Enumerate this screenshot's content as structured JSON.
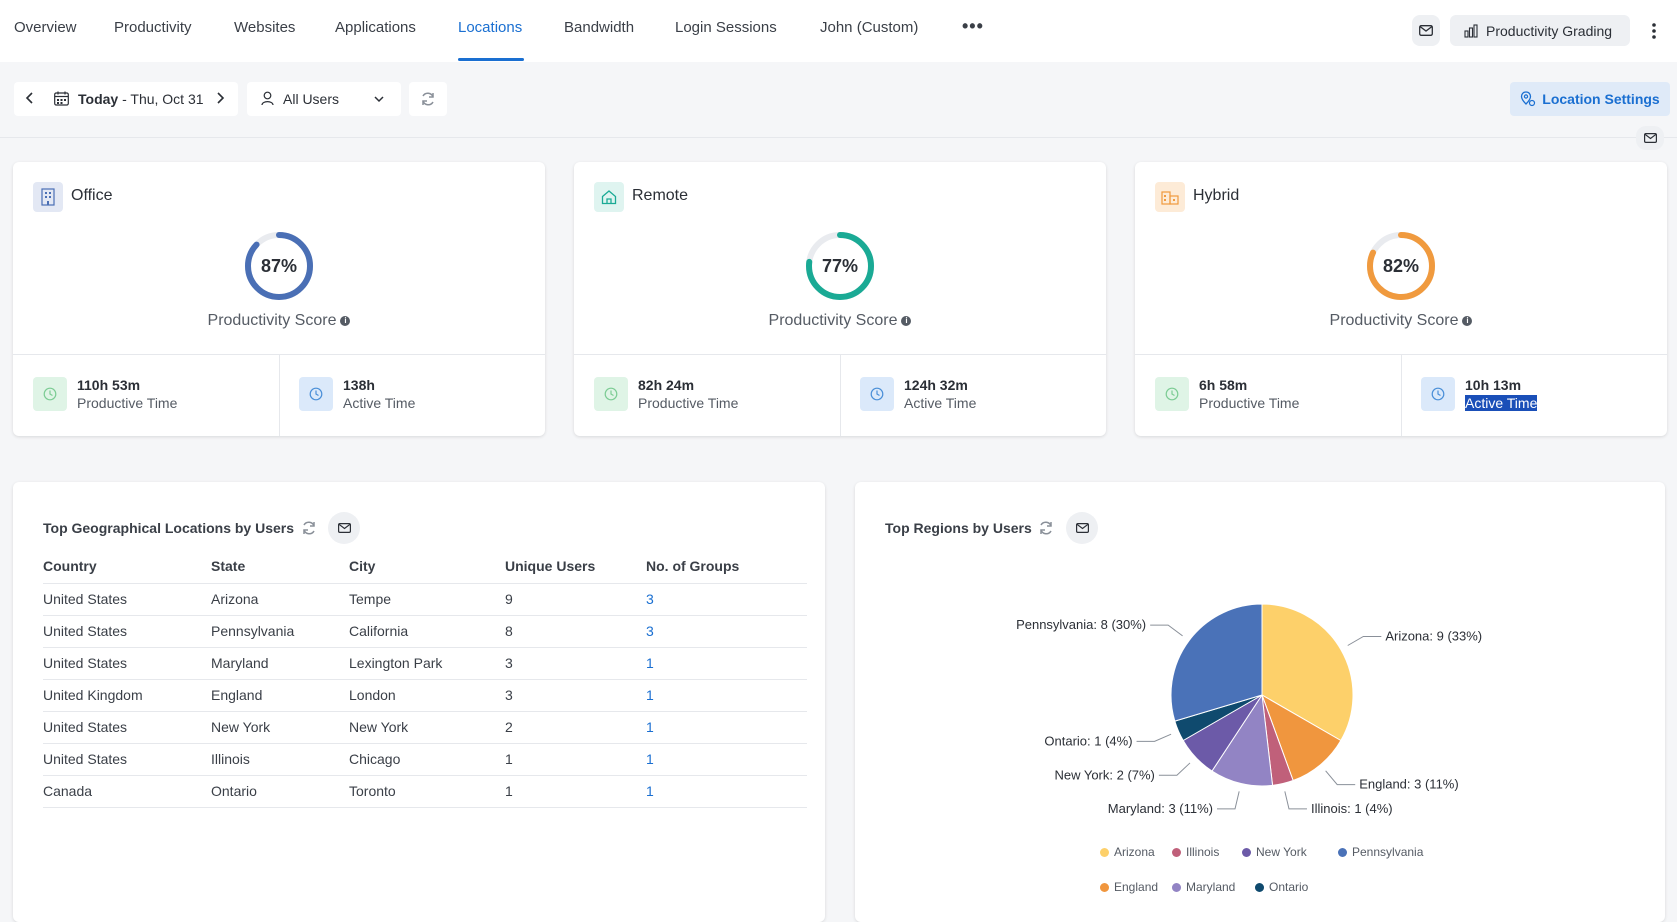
{
  "nav": {
    "tabs": [
      "Overview",
      "Productivity",
      "Websites",
      "Applications",
      "Locations",
      "Bandwidth",
      "Login Sessions",
      "John (Custom)"
    ],
    "active_tab": "Locations",
    "more": "•••",
    "productivity_grading": "Productivity Grading"
  },
  "filters": {
    "date_prefix": "Today",
    "date_suffix": " - Thu, Oct 31",
    "users": "All Users",
    "location_settings": "Location Settings"
  },
  "cards": [
    {
      "title": "Office",
      "score": "87%",
      "score_value": 87,
      "color": "#4a6fb5",
      "icon_bg": "#e3e8f4",
      "score_label": "Productivity Score",
      "productive_value": "110h 53m",
      "productive_label": "Productive Time",
      "active_value": "138h",
      "active_label": "Active Time"
    },
    {
      "title": "Remote",
      "score": "77%",
      "score_value": 77,
      "color": "#1aaa95",
      "icon_bg": "#dff4f0",
      "score_label": "Productivity Score",
      "productive_value": "82h 24m",
      "productive_label": "Productive Time",
      "active_value": "124h 32m",
      "active_label": "Active Time"
    },
    {
      "title": "Hybrid",
      "score": "82%",
      "score_value": 82,
      "color": "#f09a3e",
      "icon_bg": "#fdebd7",
      "score_label": "Productivity Score",
      "productive_value": "6h 58m",
      "productive_label": "Productive Time",
      "active_value": "10h 13m",
      "active_label": "Active Time"
    }
  ],
  "geo_table": {
    "title": "Top Geographical Locations by Users",
    "columns": [
      "Country",
      "State",
      "City",
      "Unique Users",
      "No. of Groups"
    ],
    "rows": [
      [
        "United States",
        "Arizona",
        "Tempe",
        "9",
        "3"
      ],
      [
        "United States",
        "Pennsylvania",
        "California",
        "8",
        "3"
      ],
      [
        "United States",
        "Maryland",
        "Lexington Park",
        "3",
        "1"
      ],
      [
        "United Kingdom",
        "England",
        "London",
        "3",
        "1"
      ],
      [
        "United States",
        "New York",
        "New York",
        "2",
        "1"
      ],
      [
        "United States",
        "Illinois",
        "Chicago",
        "1",
        "1"
      ],
      [
        "Canada",
        "Ontario",
        "Toronto",
        "1",
        "1"
      ]
    ]
  },
  "regions": {
    "title": "Top Regions by Users"
  },
  "chart_data": {
    "type": "pie",
    "title": "Top Regions by Users",
    "slices": [
      {
        "name": "Arizona",
        "value": 9,
        "label": "Arizona: 9 (33%)",
        "color": "#fdd06a"
      },
      {
        "name": "England",
        "value": 3,
        "label": "England: 3 (11%)",
        "color": "#f0963e"
      },
      {
        "name": "Illinois",
        "value": 1,
        "label": "Illinois: 1 (4%)",
        "color": "#c0607a"
      },
      {
        "name": "Maryland",
        "value": 3,
        "label": "Maryland: 3 (11%)",
        "color": "#9284c4"
      },
      {
        "name": "New York",
        "value": 2,
        "label": "New York: 2 (7%)",
        "color": "#6c5aa8"
      },
      {
        "name": "Ontario",
        "value": 1,
        "label": "Ontario: 1 (4%)",
        "color": "#0f4a6e"
      },
      {
        "name": "Pennsylvania",
        "value": 8,
        "label": "Pennsylvania: 8 (30%)",
        "color": "#4a72b8"
      }
    ],
    "legend": {
      "placement": "bottom",
      "items": [
        "Arizona",
        "Illinois",
        "New York",
        "Pennsylvania",
        "England",
        "Maryland",
        "Ontario"
      ]
    }
  }
}
